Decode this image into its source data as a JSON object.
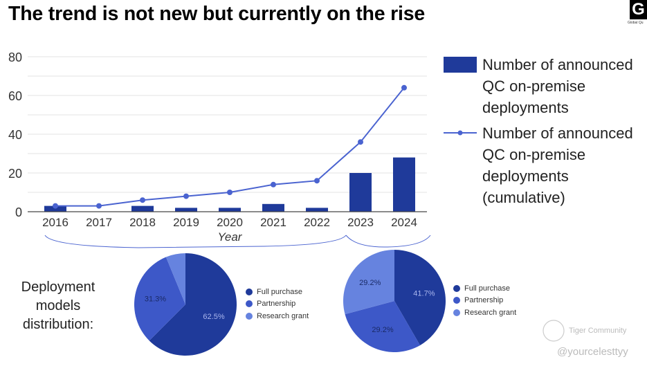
{
  "title": "The trend is not new but currently on the rise",
  "logo": {
    "letter": "G",
    "sub": "Global Qu"
  },
  "colors": {
    "bar": "#1f3a9a",
    "line": "#4a63d0",
    "full": "#1f3a9a",
    "partnership": "#3d58c8",
    "research": "#6683df",
    "grid": "#e3e3e3"
  },
  "chart_data": [
    {
      "type": "bar+line",
      "categories": [
        "2016",
        "2017",
        "2018",
        "2019",
        "2020",
        "2021",
        "2022",
        "2023",
        "2024"
      ],
      "xlabel": "Year",
      "ylim": [
        0,
        80
      ],
      "yticks": [
        0,
        20,
        40,
        60,
        80
      ],
      "grid": true,
      "legend_placement": "right",
      "series": [
        {
          "name": "Number of announced QC on-premise deployments",
          "kind": "bar",
          "values": [
            3,
            0,
            3,
            2,
            2,
            4,
            2,
            20,
            28
          ]
        },
        {
          "name": "Number of announced QC on-premise deployments (cumulative)",
          "kind": "line",
          "values": [
            3,
            3,
            6,
            8,
            10,
            14,
            16,
            36,
            64
          ]
        }
      ]
    },
    {
      "type": "pie",
      "categories": [
        "Full purchase",
        "Partnership",
        "Research grant"
      ],
      "values": [
        62.5,
        31.3,
        6.2
      ],
      "labels": [
        "62.5%",
        "31.3%",
        ""
      ]
    },
    {
      "type": "pie",
      "categories": [
        "Full purchase",
        "Partnership",
        "Research grant"
      ],
      "values": [
        41.7,
        29.2,
        29.2
      ],
      "labels": [
        "41.7%",
        "29.2%",
        "29.2%"
      ]
    }
  ],
  "deployment_label": "Deployment models distribution:",
  "watermark": {
    "community": "Tiger Community",
    "handle": "@yourcelesttyy"
  }
}
